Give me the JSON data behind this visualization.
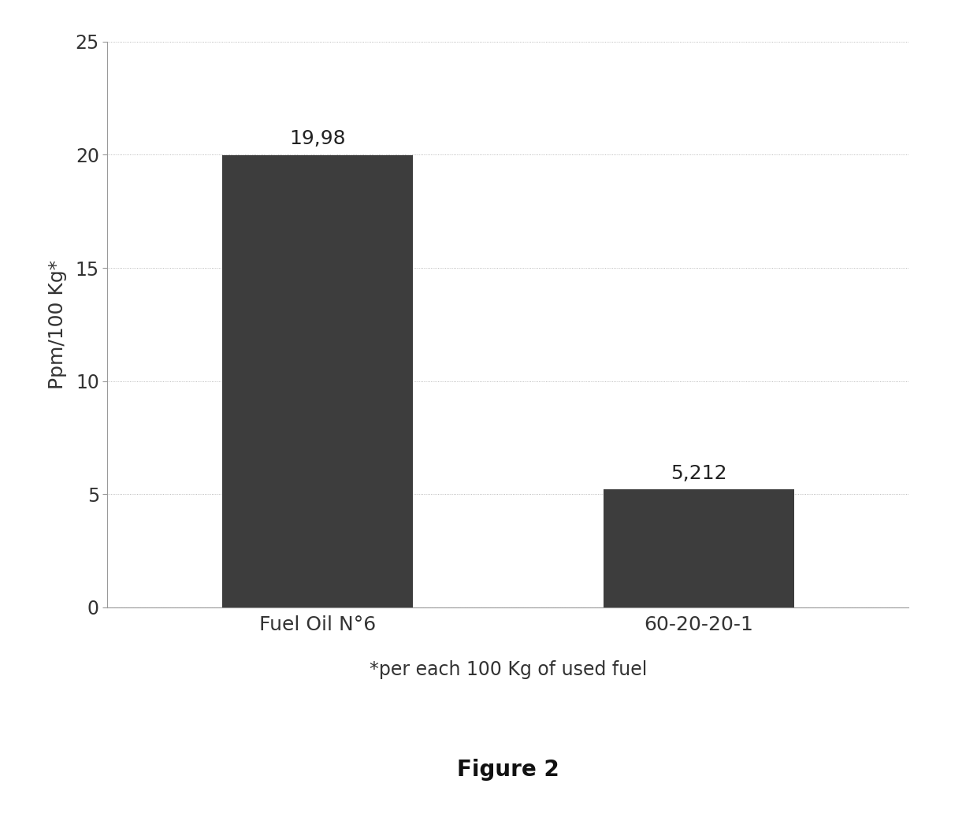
{
  "categories": [
    "Fuel Oil N°6",
    "60-20-20-1"
  ],
  "values": [
    19.98,
    5.212
  ],
  "bar_labels": [
    "19,98",
    "5,212"
  ],
  "bar_color": "#3d3d3d",
  "ylabel": "Ppm/100 Kg*",
  "xlabel_note": "*per each 100 Kg of used fuel",
  "figure_label": "Figure 2",
  "ylim": [
    0,
    25
  ],
  "yticks": [
    0,
    5,
    10,
    15,
    20,
    25
  ],
  "bar_width": 0.5,
  "background_color": "#ffffff",
  "label_fontsize": 18,
  "tick_fontsize": 17,
  "value_fontsize": 18,
  "ylabel_fontsize": 18,
  "note_fontsize": 17,
  "figure_label_fontsize": 20,
  "bar_positions": [
    0.3,
    0.7
  ]
}
